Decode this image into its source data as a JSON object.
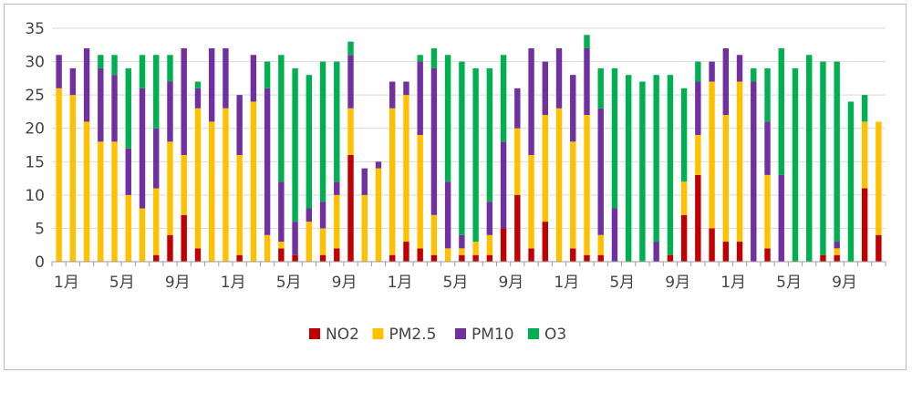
{
  "chart_data": {
    "type": "bar",
    "stacked": true,
    "title": "",
    "xlabel": "",
    "ylabel": "",
    "ylim": [
      0,
      35
    ],
    "yticks": [
      0,
      5,
      10,
      15,
      20,
      25,
      30,
      35
    ],
    "grid": true,
    "legend_position": "bottom",
    "categories": [
      "1月",
      "2月",
      "3月",
      "4月",
      "5月",
      "6月",
      "7月",
      "8月",
      "9月",
      "10月",
      "11月",
      "12月",
      "1月",
      "2月",
      "3月",
      "4月",
      "5月",
      "6月",
      "7月",
      "8月",
      "9月",
      "10月",
      "11月",
      "12月",
      "1月",
      "2月",
      "3月",
      "4月",
      "5月",
      "6月",
      "7月",
      "8月",
      "9月",
      "10月",
      "11月",
      "12月",
      "1月",
      "2月",
      "3月",
      "4月",
      "5月",
      "6月",
      "7月",
      "8月",
      "9月",
      "10月",
      "11月",
      "12月",
      "1月",
      "2月",
      "3月",
      "4月",
      "5月",
      "6月",
      "7月",
      "8月",
      "9月",
      "10月",
      "11月",
      "12月"
    ],
    "x_tick_labels": [
      "1月",
      "",
      "",
      "",
      "5月",
      "",
      "",
      "",
      "9月",
      "",
      "",
      "",
      "1月",
      "",
      "",
      "",
      "5月",
      "",
      "",
      "",
      "9月",
      "",
      "",
      "",
      "1月",
      "",
      "",
      "",
      "5月",
      "",
      "",
      "",
      "9月",
      "",
      "",
      "",
      "1月",
      "",
      "",
      "",
      "5月",
      "",
      "",
      "",
      "9月",
      "",
      "",
      "",
      "1月",
      "",
      "",
      "",
      "5月",
      "",
      "",
      "",
      "9月",
      "",
      "",
      ""
    ],
    "series": [
      {
        "name": "NO2",
        "color": "#c00000",
        "values": [
          0,
          0,
          0,
          0,
          0,
          0,
          0,
          1,
          4,
          7,
          2,
          0,
          0,
          1,
          0,
          0,
          2,
          1,
          0,
          1,
          2,
          16,
          0,
          0,
          1,
          3,
          2,
          1,
          0,
          1,
          1,
          1,
          5,
          10,
          2,
          6,
          0,
          2,
          1,
          1,
          0,
          0,
          0,
          0,
          1,
          7,
          13,
          5,
          3,
          3,
          0,
          2,
          0,
          0,
          0,
          1,
          1,
          0,
          11,
          4
        ]
      },
      {
        "name": "PM2.5",
        "color": "#ffc000",
        "values": [
          26,
          25,
          21,
          18,
          18,
          10,
          8,
          10,
          14,
          9,
          21,
          21,
          23,
          15,
          24,
          4,
          1,
          0,
          6,
          4,
          8,
          7,
          10,
          14,
          22,
          22,
          17,
          6,
          2,
          1,
          2,
          3,
          0,
          10,
          14,
          16,
          23,
          16,
          21,
          3,
          0,
          0,
          0,
          0,
          0,
          5,
          6,
          22,
          19,
          24,
          0,
          11,
          0,
          0,
          0,
          0,
          1,
          0,
          10,
          17
        ]
      },
      {
        "name": "PM10",
        "color": "#7030a0",
        "values": [
          5,
          4,
          11,
          11,
          10,
          7,
          18,
          9,
          9,
          16,
          3,
          11,
          9,
          9,
          7,
          22,
          9,
          5,
          2,
          4,
          2,
          8,
          4,
          1,
          4,
          2,
          11,
          22,
          10,
          2,
          0,
          5,
          13,
          6,
          16,
          8,
          9,
          10,
          10,
          19,
          8,
          0,
          0,
          3,
          0,
          0,
          8,
          3,
          10,
          4,
          27,
          8,
          13,
          0,
          0,
          0,
          1,
          0,
          0,
          0
        ]
      },
      {
        "name": "O3",
        "color": "#00b050",
        "values": [
          0,
          0,
          0,
          2,
          3,
          12,
          5,
          11,
          4,
          0,
          1,
          0,
          0,
          0,
          0,
          4,
          19,
          23,
          20,
          21,
          18,
          2,
          0,
          0,
          0,
          0,
          1,
          3,
          19,
          26,
          26,
          20,
          13,
          0,
          0,
          0,
          0,
          0,
          2,
          6,
          21,
          28,
          27,
          25,
          27,
          14,
          3,
          0,
          0,
          0,
          2,
          8,
          19,
          29,
          31,
          29,
          27,
          24,
          4,
          0
        ]
      }
    ]
  }
}
